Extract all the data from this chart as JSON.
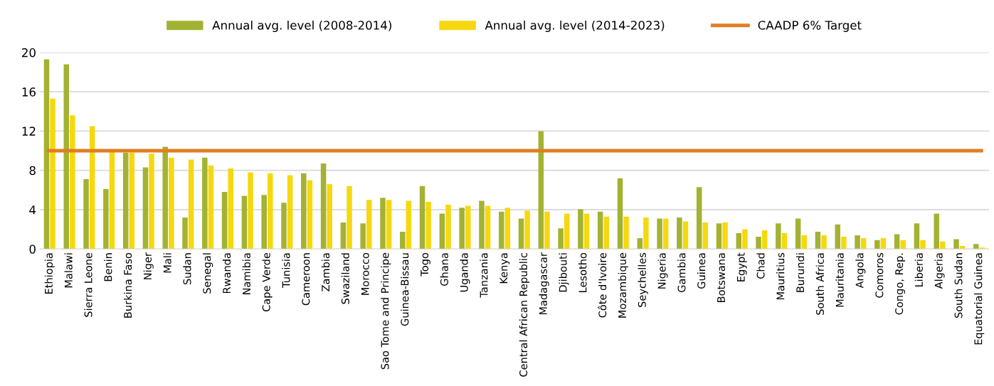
{
  "chart_data": {
    "type": "bar",
    "categories": [
      "Ethiopia",
      "Malawi",
      "Sierra Leone",
      "Benin",
      "Burkina Faso",
      "Niger",
      "Mali",
      "Sudan",
      "Senegal",
      "Rwanda",
      "Namibia",
      "Cape Verde",
      "Tunisia",
      "Cameroon",
      "Zambia",
      "Swaziland",
      "Morocco",
      "Sao Tome and Principe",
      "Guinea-Bissau",
      "Togo",
      "Ghana",
      "Uganda",
      "Tanzania",
      "Kenya",
      "Central African Republic",
      "Madagascar",
      "Djibouti",
      "Lesotho",
      "Côte d'Ivoire",
      "Mozambique",
      "Seychelles",
      "Nigeria",
      "Gambia",
      "Guinea",
      "Botswana",
      "Egypt",
      "Chad",
      "Mauritius",
      "Burundi",
      "South Africa",
      "Mauritania",
      "Angola",
      "Comoros",
      "Congo, Rep.",
      "Liberia",
      "Algeria",
      "South Sudan",
      "Equatorial Guinea"
    ],
    "series": [
      {
        "name": "Annual avg. level (2008-2014)",
        "color": "#a3b232",
        "values": [
          19.3,
          18.8,
          7.1,
          6.1,
          9.8,
          8.3,
          10.4,
          3.2,
          9.3,
          5.8,
          5.4,
          5.5,
          4.7,
          7.7,
          8.7,
          2.7,
          2.6,
          5.2,
          1.75,
          6.4,
          3.6,
          4.2,
          4.9,
          3.8,
          3.1,
          12.0,
          2.1,
          4.05,
          3.8,
          7.2,
          1.1,
          3.1,
          3.2,
          6.3,
          2.6,
          1.6,
          1.25,
          2.6,
          3.1,
          1.75,
          2.5,
          1.4,
          0.9,
          1.5,
          2.6,
          3.6,
          1.0,
          0.5
        ]
      },
      {
        "name": "Annual avg. level (2014-2023)",
        "color": "#f5d80f",
        "values": [
          15.3,
          13.6,
          12.5,
          10.0,
          9.8,
          9.7,
          9.3,
          9.1,
          8.5,
          8.2,
          7.8,
          7.7,
          7.5,
          7.0,
          6.6,
          6.4,
          5.0,
          5.0,
          4.9,
          4.8,
          4.5,
          4.4,
          4.4,
          4.2,
          3.9,
          3.8,
          3.6,
          3.6,
          3.3,
          3.3,
          3.2,
          3.1,
          2.8,
          2.7,
          2.7,
          2.0,
          1.9,
          1.6,
          1.4,
          1.4,
          1.25,
          1.1,
          1.1,
          0.9,
          0.9,
          0.75,
          0.3,
          0.15
        ]
      }
    ],
    "ref_lines": [
      {
        "axis": "y",
        "value": 10,
        "label": "CAADP 6% Target",
        "color": "#e07f22",
        "line_style": "solid"
      }
    ],
    "ylim": [
      0,
      20
    ],
    "yticks": [
      0,
      4,
      8,
      12,
      16,
      20
    ],
    "grid": "y",
    "legend": "top"
  }
}
